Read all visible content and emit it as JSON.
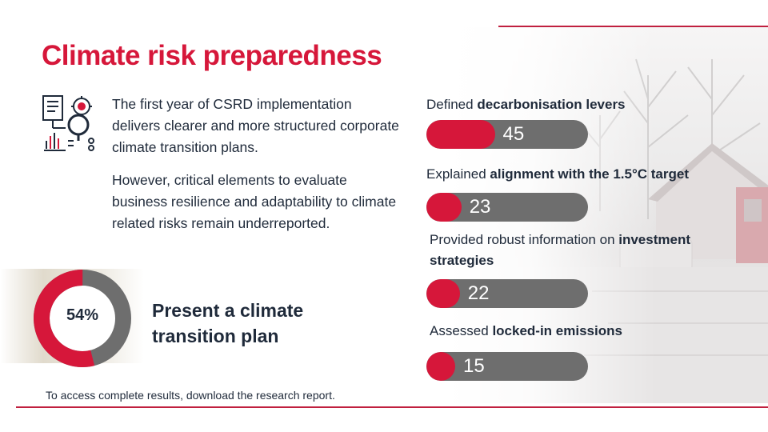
{
  "title": "Climate risk preparedness",
  "intro": {
    "paragraph_1": "The first year of CSRD implementation delivers clearer and more structured corporate climate transition plans.",
    "paragraph_2": "However, critical elements to evaluate business resilience and adaptability to climate related risks remain underreported."
  },
  "highlight": {
    "percent": "54%",
    "percent_value": 54,
    "text": "Present a climate transition plan"
  },
  "metrics": [
    {
      "label_pre": "Defined ",
      "label_bold": "decarbonisation levers",
      "value": "45",
      "fraction": 0.45
    },
    {
      "label_pre": "Explained ",
      "label_bold": "alignment with the 1.5°C target",
      "value": "23",
      "fraction": 0.23
    },
    {
      "label_pre": "Provided robust information on ",
      "label_bold": "investment strategies",
      "value": "22",
      "fraction": 0.22
    },
    {
      "label_pre": "Assessed ",
      "label_bold": "locked-in emissions",
      "value": "15",
      "fraction": 0.15
    }
  ],
  "footnote": "To access complete results, download the research report.",
  "colors": {
    "accent": "#d6173a",
    "bar_track": "#6e6e6e",
    "text": "#1f2a3a",
    "line": "#c0203f"
  },
  "icons": {
    "report": "document-gear-magnifier-icon"
  }
}
